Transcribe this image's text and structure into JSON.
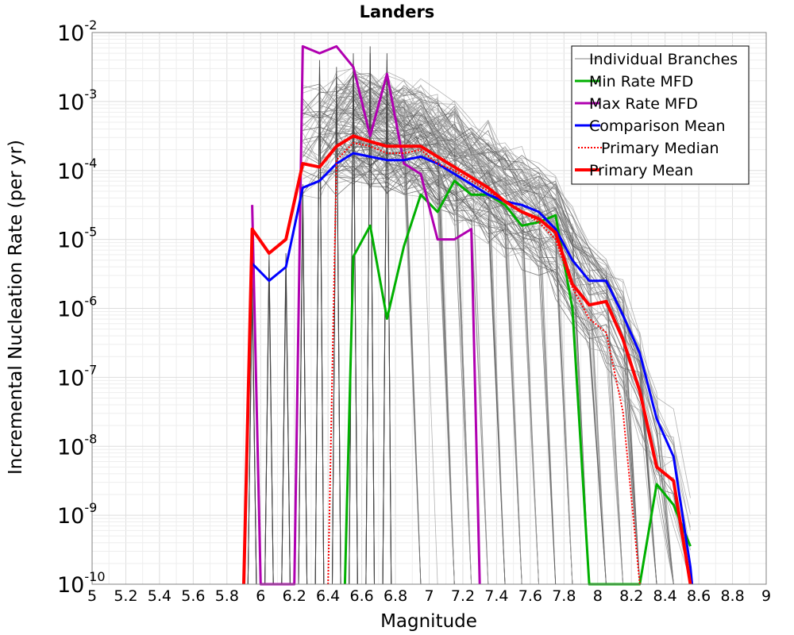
{
  "chart_data": {
    "type": "line",
    "title": "Landers",
    "xlabel": "Magnitude",
    "ylabel": "Incremental Nucleation Rate (per yr)",
    "xlim": [
      5,
      9
    ],
    "ylim_log10": [
      -10,
      -2
    ],
    "y_scale": "log",
    "grid": true,
    "legend_position": "top-right",
    "x_ticks": [
      "5",
      "5.2",
      "5.4",
      "5.6",
      "5.8",
      "6",
      "6.2",
      "6.4",
      "6.6",
      "6.8",
      "7",
      "7.2",
      "7.4",
      "7.6",
      "7.8",
      "8",
      "8.2",
      "8.4",
      "8.6",
      "8.8",
      "9"
    ],
    "y_tick_exponents": [
      "-10",
      "-9",
      "-8",
      "-7",
      "-6",
      "-5",
      "-4",
      "-3",
      "-2"
    ],
    "y_tick_base": "10",
    "legend": [
      {
        "name": "Individual Branches",
        "color": "#808080",
        "style": "thin"
      },
      {
        "name": "Min Rate MFD",
        "color": "#00b000",
        "style": "solid"
      },
      {
        "name": "Max Rate MFD",
        "color": "#b000b0",
        "style": "solid"
      },
      {
        "name": "Comparison Mean",
        "color": "#0000ff",
        "style": "solid"
      },
      {
        "name": "Primary Median",
        "color": "#ff0000",
        "style": "dotted"
      },
      {
        "name": "Primary Mean",
        "color": "#ff0000",
        "style": "thick"
      }
    ],
    "series": [
      {
        "name": "Min Rate MFD",
        "color": "#00b000",
        "x": [
          6.5,
          6.55,
          6.65,
          6.75,
          6.85,
          6.95,
          7.05,
          7.15,
          7.25,
          7.35,
          7.45,
          7.55,
          7.65,
          7.75,
          7.85,
          7.95,
          8.05,
          8.15,
          8.25,
          8.35,
          8.45,
          8.55
        ],
        "log10": [
          -10,
          -5.25,
          -4.8,
          -6.15,
          -5.1,
          -4.35,
          -4.6,
          -4.15,
          -4.35,
          -4.35,
          -4.5,
          -4.8,
          -4.75,
          -4.65,
          -6.0,
          -10,
          -10,
          -10,
          -10,
          -8.55,
          -8.85,
          -9.45
        ]
      },
      {
        "name": "Max Rate MFD",
        "color": "#b000b0",
        "x": [
          5.95,
          6.0,
          6.2,
          6.25,
          6.35,
          6.45,
          6.55,
          6.65,
          6.75,
          6.85,
          6.95,
          7.05,
          7.15,
          7.25,
          7.3
        ],
        "log10": [
          -4.5,
          -10,
          -10,
          -2.2,
          -2.3,
          -2.2,
          -2.5,
          -3.5,
          -2.6,
          -3.9,
          -4.05,
          -5.0,
          -5.0,
          -4.85,
          -10
        ]
      },
      {
        "name": "Comparison Mean",
        "color": "#0000ff",
        "x": [
          5.95,
          6.05,
          6.15,
          6.25,
          6.35,
          6.45,
          6.55,
          6.65,
          6.75,
          6.85,
          6.95,
          7.05,
          7.15,
          7.25,
          7.35,
          7.45,
          7.55,
          7.65,
          7.75,
          7.85,
          7.95,
          8.05,
          8.15,
          8.25,
          8.35,
          8.45,
          8.55,
          8.56
        ],
        "log10": [
          -5.35,
          -5.6,
          -5.4,
          -4.25,
          -4.15,
          -3.9,
          -3.75,
          -3.8,
          -3.85,
          -3.85,
          -3.8,
          -3.9,
          -4.05,
          -4.2,
          -4.35,
          -4.45,
          -4.5,
          -4.6,
          -4.85,
          -5.3,
          -5.6,
          -5.6,
          -6.1,
          -6.65,
          -7.6,
          -8.15,
          -9.75,
          -10
        ]
      },
      {
        "name": "Primary Median",
        "color": "#ff0000",
        "dotted": true,
        "x": [
          6.4,
          6.45,
          6.55,
          6.65,
          6.75,
          6.85,
          6.95,
          7.05,
          7.15,
          7.25,
          7.35,
          7.45,
          7.55,
          7.65,
          7.75,
          7.85,
          7.95,
          8.05,
          8.15,
          8.25
        ],
        "log10": [
          -10,
          -3.85,
          -3.6,
          -3.65,
          -3.75,
          -3.75,
          -3.7,
          -3.9,
          -4.0,
          -4.15,
          -4.3,
          -4.45,
          -4.6,
          -4.75,
          -5.0,
          -5.7,
          -6.15,
          -6.35,
          -7.5,
          -10
        ]
      },
      {
        "name": "Primary Mean",
        "color": "#ff0000",
        "x": [
          5.9,
          5.95,
          6.05,
          6.15,
          6.25,
          6.35,
          6.45,
          6.55,
          6.65,
          6.75,
          6.85,
          6.95,
          7.05,
          7.15,
          7.25,
          7.35,
          7.45,
          7.55,
          7.65,
          7.75,
          7.85,
          7.95,
          8.05,
          8.15,
          8.25,
          8.35,
          8.45,
          8.55
        ],
        "log10": [
          -10,
          -4.85,
          -5.2,
          -5.0,
          -3.9,
          -3.95,
          -3.65,
          -3.5,
          -3.58,
          -3.65,
          -3.65,
          -3.65,
          -3.8,
          -3.95,
          -4.1,
          -4.25,
          -4.45,
          -4.6,
          -4.7,
          -4.9,
          -5.65,
          -5.95,
          -5.9,
          -6.45,
          -7.2,
          -8.3,
          -8.5,
          -10
        ]
      }
    ]
  }
}
